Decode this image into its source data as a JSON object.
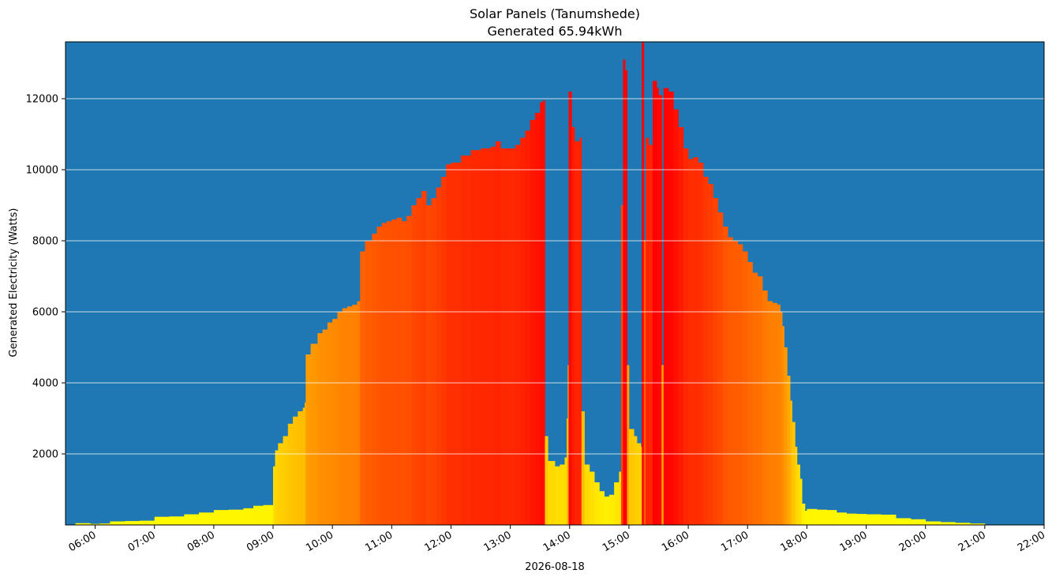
{
  "chart_data": {
    "type": "bar",
    "title": "Solar Panels (Tanumshede)",
    "subtitle": "Generated 65.94kWh",
    "xlabel": "2026-08-18",
    "ylabel": "Generated Electricity (Watts)",
    "xlim": [
      "05:30",
      "22:00"
    ],
    "ylim": [
      0,
      13600
    ],
    "x_ticks": [
      "06:00",
      "07:00",
      "08:00",
      "09:00",
      "10:00",
      "11:00",
      "12:00",
      "13:00",
      "14:00",
      "15:00",
      "16:00",
      "17:00",
      "18:00",
      "19:00",
      "20:00",
      "21:00",
      "22:00"
    ],
    "y_ticks": [
      2000,
      4000,
      6000,
      8000,
      10000,
      12000
    ],
    "grid": "horizontal",
    "background_color": "#1f77b4",
    "colormap": [
      "#ffff00",
      "#ff0000"
    ],
    "points": [
      [
        "05:40",
        50
      ],
      [
        "05:55",
        30
      ],
      [
        "06:05",
        40
      ],
      [
        "06:15",
        100
      ],
      [
        "06:30",
        110
      ],
      [
        "06:45",
        120
      ],
      [
        "07:00",
        230
      ],
      [
        "07:15",
        240
      ],
      [
        "07:30",
        300
      ],
      [
        "07:45",
        350
      ],
      [
        "08:00",
        420
      ],
      [
        "08:15",
        430
      ],
      [
        "08:30",
        470
      ],
      [
        "08:40",
        540
      ],
      [
        "08:50",
        560
      ],
      [
        "09:00",
        1650
      ],
      [
        "09:02",
        2100
      ],
      [
        "09:05",
        2300
      ],
      [
        "09:10",
        2500
      ],
      [
        "09:15",
        2850
      ],
      [
        "09:20",
        3050
      ],
      [
        "09:25",
        3200
      ],
      [
        "09:30",
        3300
      ],
      [
        "09:32",
        3450
      ],
      [
        "09:33",
        4800
      ],
      [
        "09:38",
        5100
      ],
      [
        "09:45",
        5400
      ],
      [
        "09:50",
        5500
      ],
      [
        "09:55",
        5700
      ],
      [
        "10:00",
        5800
      ],
      [
        "10:05",
        6000
      ],
      [
        "10:10",
        6100
      ],
      [
        "10:15",
        6150
      ],
      [
        "10:20",
        6200
      ],
      [
        "10:25",
        6300
      ],
      [
        "10:28",
        7700
      ],
      [
        "10:33",
        8000
      ],
      [
        "10:40",
        8200
      ],
      [
        "10:45",
        8400
      ],
      [
        "10:50",
        8500
      ],
      [
        "10:55",
        8550
      ],
      [
        "11:00",
        8600
      ],
      [
        "11:05",
        8650
      ],
      [
        "11:10",
        8550
      ],
      [
        "11:15",
        8700
      ],
      [
        "11:20",
        9000
      ],
      [
        "11:25",
        9200
      ],
      [
        "11:30",
        9400
      ],
      [
        "11:35",
        9000
      ],
      [
        "11:40",
        9200
      ],
      [
        "11:45",
        9500
      ],
      [
        "11:50",
        9800
      ],
      [
        "11:55",
        10150
      ],
      [
        "12:00",
        10200
      ],
      [
        "12:10",
        10400
      ],
      [
        "12:20",
        10550
      ],
      [
        "12:30",
        10600
      ],
      [
        "12:40",
        10650
      ],
      [
        "12:45",
        10800
      ],
      [
        "12:50",
        10600
      ],
      [
        "13:00",
        10600
      ],
      [
        "13:05",
        10700
      ],
      [
        "13:10",
        10900
      ],
      [
        "13:15",
        11100
      ],
      [
        "13:20",
        11400
      ],
      [
        "13:25",
        11600
      ],
      [
        "13:30",
        11900
      ],
      [
        "13:33",
        11950
      ],
      [
        "13:35",
        2500
      ],
      [
        "13:38",
        1800
      ],
      [
        "13:45",
        1650
      ],
      [
        "13:50",
        1700
      ],
      [
        "13:55",
        1900
      ],
      [
        "13:57",
        3000
      ],
      [
        "13:58",
        4500
      ],
      [
        "13:59",
        12200
      ],
      [
        "14:02",
        11200
      ],
      [
        "14:05",
        10800
      ],
      [
        "14:10",
        10900
      ],
      [
        "14:12",
        3200
      ],
      [
        "14:15",
        1700
      ],
      [
        "14:20",
        1500
      ],
      [
        "14:25",
        1200
      ],
      [
        "14:30",
        950
      ],
      [
        "14:35",
        800
      ],
      [
        "14:40",
        850
      ],
      [
        "14:45",
        1200
      ],
      [
        "14:50",
        1500
      ],
      [
        "14:52",
        9000
      ],
      [
        "14:54",
        13100
      ],
      [
        "14:56",
        12800
      ],
      [
        "14:58",
        4500
      ],
      [
        "15:00",
        2700
      ],
      [
        "15:05",
        2500
      ],
      [
        "15:08",
        2300
      ],
      [
        "15:12",
        2200
      ],
      [
        "15:13",
        13600
      ],
      [
        "15:15",
        8000
      ],
      [
        "15:17",
        10900
      ],
      [
        "15:20",
        10700
      ],
      [
        "15:24",
        12500
      ],
      [
        "15:28",
        12300
      ],
      [
        "15:30",
        12100
      ],
      [
        "15:32",
        12100
      ],
      [
        "15:33",
        4500
      ],
      [
        "15:35",
        12300
      ],
      [
        "15:40",
        12200
      ],
      [
        "15:45",
        11700
      ],
      [
        "15:50",
        11200
      ],
      [
        "15:55",
        10600
      ],
      [
        "16:00",
        10300
      ],
      [
        "16:05",
        10350
      ],
      [
        "16:10",
        10200
      ],
      [
        "16:15",
        9800
      ],
      [
        "16:20",
        9600
      ],
      [
        "16:25",
        9200
      ],
      [
        "16:30",
        8800
      ],
      [
        "16:35",
        8400
      ],
      [
        "16:40",
        8100
      ],
      [
        "16:45",
        8000
      ],
      [
        "16:50",
        7900
      ],
      [
        "16:55",
        7700
      ],
      [
        "17:00",
        7400
      ],
      [
        "17:05",
        7100
      ],
      [
        "17:10",
        7000
      ],
      [
        "17:15",
        6600
      ],
      [
        "17:20",
        6300
      ],
      [
        "17:25",
        6250
      ],
      [
        "17:30",
        6200
      ],
      [
        "17:33",
        6000
      ],
      [
        "17:35",
        5600
      ],
      [
        "17:37",
        5000
      ],
      [
        "17:40",
        4200
      ],
      [
        "17:43",
        3500
      ],
      [
        "17:45",
        2900
      ],
      [
        "17:48",
        2200
      ],
      [
        "17:50",
        1700
      ],
      [
        "17:53",
        1300
      ],
      [
        "17:55",
        600
      ],
      [
        "17:58",
        400
      ],
      [
        "18:00",
        450
      ],
      [
        "18:10",
        430
      ],
      [
        "18:20",
        420
      ],
      [
        "18:30",
        350
      ],
      [
        "18:40",
        320
      ],
      [
        "18:50",
        310
      ],
      [
        "19:00",
        300
      ],
      [
        "19:15",
        290
      ],
      [
        "19:30",
        190
      ],
      [
        "19:45",
        160
      ],
      [
        "20:00",
        100
      ],
      [
        "20:15",
        80
      ],
      [
        "20:30",
        60
      ],
      [
        "20:45",
        40
      ]
    ]
  }
}
